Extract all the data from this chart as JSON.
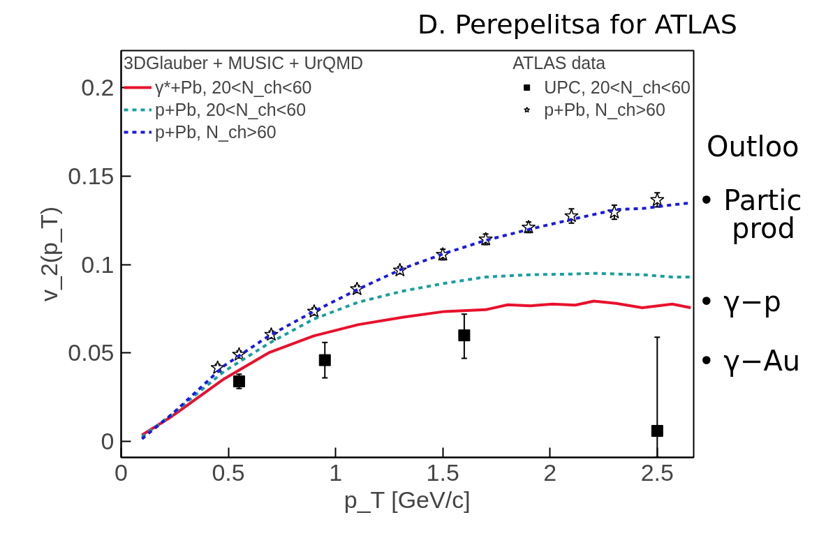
{
  "chart_data": {
    "type": "line",
    "xlabel": "p_T [GeV/c]",
    "ylabel": "v_2(p_T)",
    "xlim": [
      0,
      2.67
    ],
    "ylim": [
      -0.009,
      0.221
    ],
    "xticks": [
      0,
      0.5,
      1,
      1.5,
      2,
      2.5
    ],
    "yticks": [
      0,
      0.05,
      0.1,
      0.15,
      0.2
    ],
    "grid": false,
    "legend": "top left",
    "legend_title": [
      "3DGlauber + MUSIC + UrQMD",
      "ATLAS data"
    ],
    "series": [
      {
        "name": "γ*+Pb, 20<N_ch<60",
        "color": "#e8112d",
        "line_style": "solid",
        "x": [
          0.097,
          0.236,
          0.48,
          0.689,
          0.898,
          1.107,
          1.316,
          1.507,
          1.699,
          1.803,
          1.908,
          2.012,
          2.117,
          2.204,
          2.308,
          2.43,
          2.57,
          2.656
        ],
        "values": [
          0.0036,
          0.0142,
          0.0354,
          0.0502,
          0.0597,
          0.0661,
          0.0703,
          0.0735,
          0.0745,
          0.0773,
          0.0767,
          0.0777,
          0.0771,
          0.0794,
          0.0781,
          0.0756,
          0.0777,
          0.0756
        ]
      },
      {
        "name": "p+Pb, 20<N_ch<60",
        "color": "#1a9e9e",
        "line_style": "dashed",
        "x": [
          0.097,
          0.236,
          0.48,
          0.689,
          0.898,
          1.107,
          1.316,
          1.507,
          1.699,
          1.908,
          2.117,
          2.204,
          2.308,
          2.43,
          2.57,
          2.656
        ],
        "values": [
          0.0026,
          0.0153,
          0.0396,
          0.0555,
          0.0692,
          0.0788,
          0.0851,
          0.0894,
          0.093,
          0.0943,
          0.0947,
          0.0951,
          0.0947,
          0.0943,
          0.093,
          0.093
        ]
      },
      {
        "name": "p+Pb, N_ch>60",
        "color": "#1a1adf",
        "line_style": "dashed",
        "x": [
          0.097,
          0.236,
          0.48,
          0.689,
          0.898,
          1.107,
          1.316,
          1.507,
          1.699,
          1.908,
          2.117,
          2.308,
          2.43,
          2.57,
          2.656
        ],
        "values": [
          0.0015,
          0.0153,
          0.0428,
          0.0597,
          0.0735,
          0.0862,
          0.0979,
          0.1063,
          0.1137,
          0.1201,
          0.126,
          0.1311,
          0.1317,
          0.1338,
          0.1349
        ]
      },
      {
        "name": "UPC, 20<N_ch<60",
        "type": "scatter",
        "marker": "square",
        "color": "#000000",
        "x": [
          0.55,
          0.95,
          1.6,
          2.5
        ],
        "values": [
          0.034,
          0.046,
          0.06,
          0.006
        ],
        "errors": [
          [
            0.03,
            0.038
          ],
          [
            0.036,
            0.056
          ],
          [
            0.047,
            0.072
          ],
          [
            -0.009,
            0.059
          ]
        ]
      },
      {
        "name": "p+Pb, N_ch>60",
        "type": "scatter",
        "marker": "star",
        "color": "#000000",
        "x": [
          0.45,
          0.55,
          0.7,
          0.9,
          1.1,
          1.3,
          1.5,
          1.7,
          1.9,
          2.1,
          2.3,
          2.5
        ],
        "values": [
          0.0417,
          0.0492,
          0.0604,
          0.0735,
          0.0862,
          0.0968,
          0.1057,
          0.1143,
          0.1211,
          0.1275,
          0.1296,
          0.1366
        ],
        "errors": [
          0.002,
          0.002,
          0.002,
          0.002,
          0.002,
          0.002,
          0.003,
          0.003,
          0.003,
          0.004,
          0.004,
          0.004
        ]
      }
    ],
    "annotations": [
      "D. Perepelitsa for ATLAS",
      "Outloo",
      "• Partic",
      "prod",
      "• γ−p",
      "• γ−Au"
    ]
  }
}
